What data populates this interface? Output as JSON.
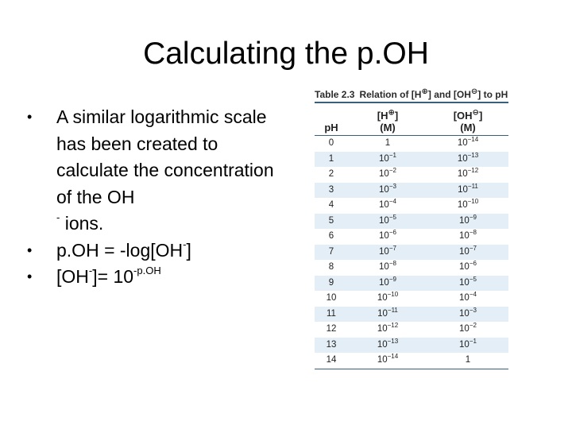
{
  "slide": {
    "title": "Calculating the p.OH",
    "bullets": {
      "b1": {
        "text": "A similar logarithmic scale has been created to calculate the concentration of the OH",
        "sup": "-",
        "tail": " ions."
      },
      "b2": {
        "pre": "p.OH = -log[OH",
        "sup": "-",
        "post": "]"
      },
      "b3": {
        "pre": "[OH",
        "sup1": "-",
        "mid": "]= 10",
        "sup2": "-p.OH"
      }
    }
  },
  "table": {
    "caption_label": "Table 2.3",
    "caption_pre": "Relation of [H",
    "caption_h_charge": "⊕",
    "caption_mid": "] and [OH",
    "caption_oh_charge": "⊖",
    "caption_post": "] to pH",
    "headers": {
      "ph": "pH",
      "h_pre": "[H",
      "h_charge": "⊕",
      "h_post": "]",
      "h_unit": "(M)",
      "oh_pre": "[OH",
      "oh_charge": "⊖",
      "oh_post": "]",
      "oh_unit": "(M)"
    },
    "rows": [
      {
        "ph": "0",
        "h": "1",
        "h_exp": "",
        "oh": "10",
        "oh_exp": "−14"
      },
      {
        "ph": "1",
        "h": "10",
        "h_exp": "−1",
        "oh": "10",
        "oh_exp": "−13"
      },
      {
        "ph": "2",
        "h": "10",
        "h_exp": "−2",
        "oh": "10",
        "oh_exp": "−12"
      },
      {
        "ph": "3",
        "h": "10",
        "h_exp": "−3",
        "oh": "10",
        "oh_exp": "−11"
      },
      {
        "ph": "4",
        "h": "10",
        "h_exp": "−4",
        "oh": "10",
        "oh_exp": "−10"
      },
      {
        "ph": "5",
        "h": "10",
        "h_exp": "−5",
        "oh": "10",
        "oh_exp": "−9"
      },
      {
        "ph": "6",
        "h": "10",
        "h_exp": "−6",
        "oh": "10",
        "oh_exp": "−8"
      },
      {
        "ph": "7",
        "h": "10",
        "h_exp": "−7",
        "oh": "10",
        "oh_exp": "−7"
      },
      {
        "ph": "8",
        "h": "10",
        "h_exp": "−8",
        "oh": "10",
        "oh_exp": "−6"
      },
      {
        "ph": "9",
        "h": "10",
        "h_exp": "−9",
        "oh": "10",
        "oh_exp": "−5"
      },
      {
        "ph": "10",
        "h": "10",
        "h_exp": "−10",
        "oh": "10",
        "oh_exp": "−4"
      },
      {
        "ph": "11",
        "h": "10",
        "h_exp": "−11",
        "oh": "10",
        "oh_exp": "−3"
      },
      {
        "ph": "12",
        "h": "10",
        "h_exp": "−12",
        "oh": "10",
        "oh_exp": "−2"
      },
      {
        "ph": "13",
        "h": "10",
        "h_exp": "−13",
        "oh": "10",
        "oh_exp": "−1"
      },
      {
        "ph": "14",
        "h": "10",
        "h_exp": "−14",
        "oh": "1",
        "oh_exp": ""
      }
    ]
  },
  "colors": {
    "row_shade": "#e3eef6",
    "rule": "#3a5f7c"
  }
}
